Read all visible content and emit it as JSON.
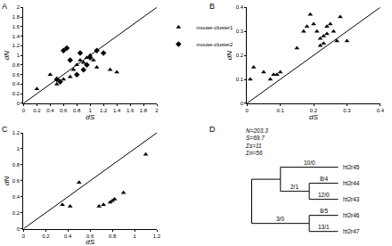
{
  "chart_data": [
    {
      "panel": "A",
      "type": "scatter",
      "x_label": "dS",
      "y_label": "dN",
      "xlim": [
        0,
        2
      ],
      "xticks": [
        0,
        0.2,
        0.4,
        0.6,
        0.8,
        1,
        1.2,
        1.4,
        1.6,
        1.8,
        2
      ],
      "ylim": [
        0,
        2
      ],
      "yticks": [
        0,
        0.2,
        0.4,
        0.6,
        0.8,
        1,
        1.2,
        1.4,
        1.6,
        1.8,
        2
      ],
      "grid": false,
      "legend": "right",
      "series": [
        {
          "name": "mouse-cluster1",
          "marker": "triangle-up",
          "color": "#000000",
          "x": [
            0.2,
            0.4,
            0.5,
            0.6,
            0.7,
            0.75,
            0.8,
            0.85,
            0.9,
            0.95,
            1.0,
            1.05,
            1.1,
            1.3,
            1.4
          ],
          "y": [
            0.3,
            0.6,
            0.4,
            0.5,
            0.55,
            0.7,
            0.8,
            0.9,
            0.85,
            0.95,
            1.0,
            0.9,
            0.75,
            0.7,
            0.65
          ]
        },
        {
          "name": "mouse-cluster2",
          "marker": "diamond",
          "color": "#000000",
          "x": [
            0.5,
            0.55,
            0.6,
            0.65,
            0.7,
            0.8,
            0.85,
            0.9,
            0.95,
            1.0,
            1.1,
            1.2
          ],
          "y": [
            0.5,
            0.45,
            1.1,
            1.15,
            0.9,
            0.6,
            1.05,
            0.7,
            0.8,
            0.95,
            1.1,
            1.05
          ]
        }
      ]
    },
    {
      "panel": "B",
      "type": "scatter",
      "x_label": "dS",
      "y_label": "dN",
      "xlim": [
        0,
        0.4
      ],
      "xticks": [
        0,
        0.1,
        0.2,
        0.3,
        0.4
      ],
      "ylim": [
        0,
        0.4
      ],
      "yticks": [
        0,
        0.1,
        0.2,
        0.3,
        0.4
      ],
      "grid": false,
      "series": [
        {
          "marker": "triangle-up",
          "color": "#000000",
          "x": [
            0.01,
            0.02,
            0.05,
            0.07,
            0.08,
            0.09,
            0.1,
            0.15,
            0.17,
            0.18,
            0.19,
            0.2,
            0.21,
            0.22,
            0.23,
            0.23,
            0.24,
            0.25,
            0.26,
            0.27,
            0.28,
            0.3,
            0.22,
            0.24
          ],
          "y": [
            0.1,
            0.15,
            0.13,
            0.1,
            0.12,
            0.12,
            0.13,
            0.23,
            0.3,
            0.32,
            0.37,
            0.33,
            0.3,
            0.27,
            0.25,
            0.28,
            0.29,
            0.33,
            0.3,
            0.26,
            0.36,
            0.26,
            0.24,
            0.32
          ]
        }
      ]
    },
    {
      "panel": "C",
      "type": "scatter",
      "x_label": "dS",
      "y_label": "dN",
      "xlim": [
        0,
        1.2
      ],
      "xticks": [
        0,
        0.2,
        0.4,
        0.6,
        0.8,
        1,
        1.2
      ],
      "ylim": [
        0,
        1.2
      ],
      "yticks": [
        0,
        0.2,
        0.4,
        0.6,
        0.8,
        1,
        1.2
      ],
      "grid": false,
      "series": [
        {
          "marker": "triangle-up",
          "color": "#000000",
          "x": [
            0.35,
            0.42,
            0.5,
            0.68,
            0.72,
            0.78,
            0.8,
            0.82,
            0.9,
            1.1
          ],
          "y": [
            0.3,
            0.28,
            0.58,
            0.28,
            0.3,
            0.33,
            0.35,
            0.37,
            0.45,
            0.93
          ]
        }
      ]
    }
  ],
  "diagram": {
    "panel": "D",
    "stats": [
      "N=203.3",
      "S=69.7",
      "Σs=11",
      "Σn=56"
    ],
    "tree": {
      "children": [
        {
          "children": [
            {
              "label": "ht2r45",
              "branch": "10/0"
            },
            {
              "branch": "2/1",
              "children": [
                {
                  "label": "ht2r44",
                  "branch": "8/4"
                },
                {
                  "label": "ht2r43",
                  "branch": "12/0"
                }
              ]
            }
          ]
        },
        {
          "branch": "3/0",
          "children": [
            {
              "label": "ht2r46",
              "branch": "8/5"
            },
            {
              "label": "ht2r47",
              "branch": "13/1"
            }
          ]
        }
      ]
    }
  }
}
